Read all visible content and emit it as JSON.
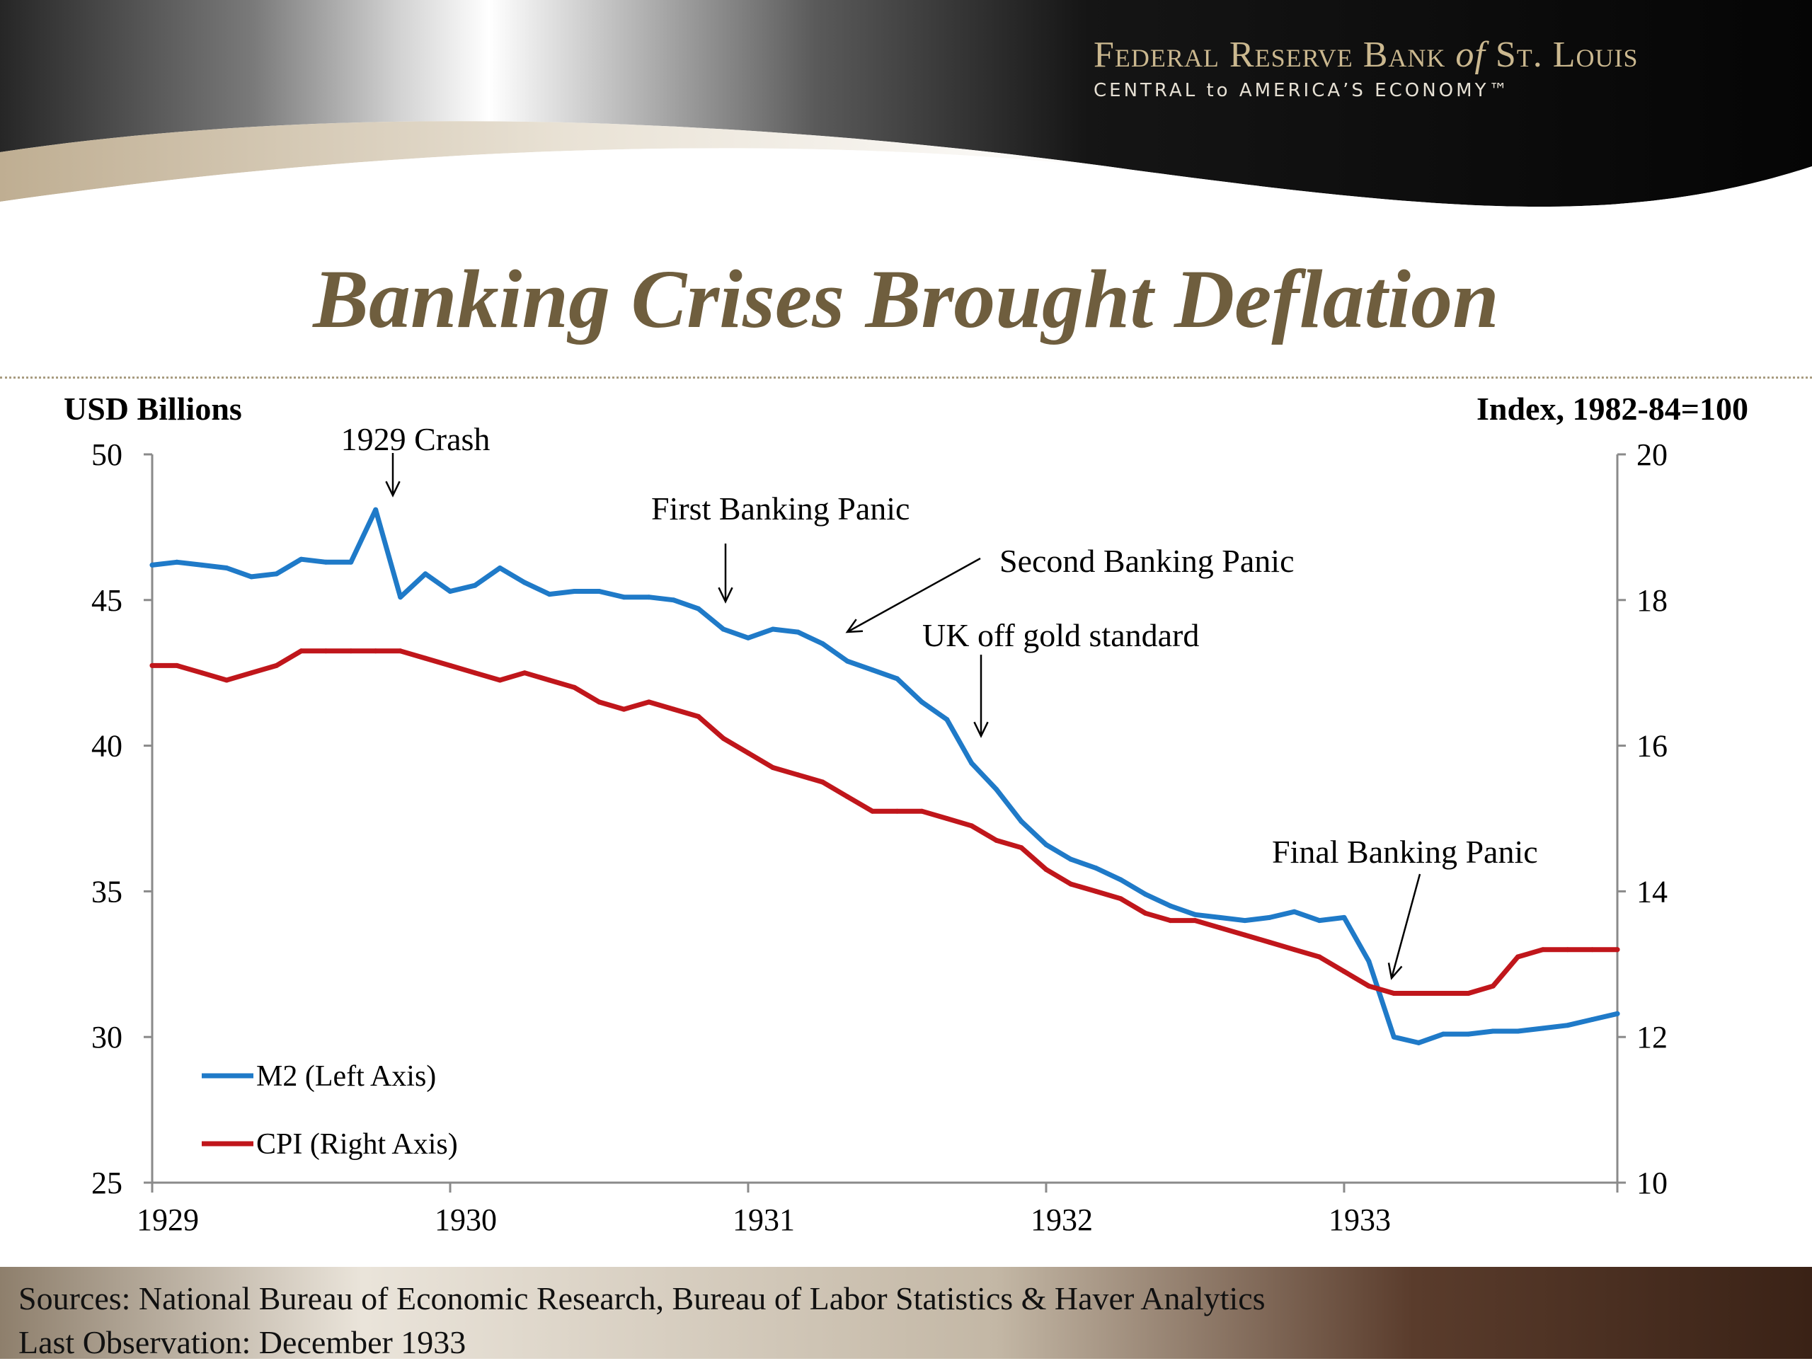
{
  "brand": {
    "name_federal": "Federal",
    "name_reserve": "Reserve",
    "name_bank": "Bank",
    "name_of": "of",
    "name_st_louis": "St. Louis",
    "tagline": "CENTRAL to AMERICA’S ECONOMY™"
  },
  "title": "Banking Crises Brought Deflation",
  "footer": {
    "sources": "Sources: National Bureau of Economic Research, Bureau of Labor Statistics & Haver Analytics",
    "last_observation": "Last Observation: December 1933"
  },
  "colors": {
    "m2": "#1f7ac8",
    "cpi": "#c0161b",
    "title": "#6f5e3e"
  },
  "chart_data": {
    "type": "line",
    "ylabel_left": "USD Billions",
    "ylabel_right": "Index, 1982-84=100",
    "xlim": [
      1929.0,
      1933.917
    ],
    "ylim_left": [
      25,
      50
    ],
    "ylim_right": [
      10,
      20
    ],
    "xticks": [
      1929,
      1930,
      1931,
      1932,
      1933
    ],
    "xtick_labels": [
      "1929",
      "1930",
      "1931",
      "1932",
      "1933"
    ],
    "yticks_left": [
      25,
      30,
      35,
      40,
      45,
      50
    ],
    "yticks_right": [
      10,
      12,
      14,
      16,
      18,
      20
    ],
    "grid": false,
    "legend": "bottom-left",
    "x": [
      1929.0,
      1929.083,
      1929.167,
      1929.25,
      1929.333,
      1929.417,
      1929.5,
      1929.583,
      1929.667,
      1929.75,
      1929.833,
      1929.917,
      1930.0,
      1930.083,
      1930.167,
      1930.25,
      1930.333,
      1930.417,
      1930.5,
      1930.583,
      1930.667,
      1930.75,
      1930.833,
      1930.917,
      1931.0,
      1931.083,
      1931.167,
      1931.25,
      1931.333,
      1931.417,
      1931.5,
      1931.583,
      1931.667,
      1931.75,
      1931.833,
      1931.917,
      1932.0,
      1932.083,
      1932.167,
      1932.25,
      1932.333,
      1932.417,
      1932.5,
      1932.583,
      1932.667,
      1932.75,
      1932.833,
      1932.917,
      1933.0,
      1933.083,
      1933.167,
      1933.25,
      1933.333,
      1933.417,
      1933.5,
      1933.583,
      1933.667,
      1933.75,
      1933.833,
      1933.917
    ],
    "series": [
      {
        "name": "M2 (Left Axis)",
        "axis": "left",
        "color": "#1f7ac8",
        "values": [
          46.2,
          46.3,
          46.2,
          46.1,
          45.8,
          45.9,
          46.4,
          46.3,
          46.3,
          48.1,
          45.1,
          45.9,
          45.3,
          45.5,
          46.1,
          45.6,
          45.2,
          45.3,
          45.3,
          45.1,
          45.1,
          45.0,
          44.7,
          44.0,
          43.7,
          44.0,
          43.9,
          43.5,
          42.9,
          42.6,
          42.3,
          41.5,
          40.9,
          39.4,
          38.5,
          37.4,
          36.6,
          36.1,
          35.8,
          35.4,
          34.9,
          34.5,
          34.2,
          34.1,
          34.0,
          34.1,
          34.3,
          34.0,
          34.1,
          32.6,
          30.0,
          29.8,
          30.1,
          30.1,
          30.2,
          30.2,
          30.3,
          30.4,
          30.6,
          30.8
        ]
      },
      {
        "name": "CPI (Right Axis)",
        "axis": "right",
        "color": "#c0161b",
        "values": [
          17.1,
          17.1,
          17.0,
          16.9,
          17.0,
          17.1,
          17.3,
          17.3,
          17.3,
          17.3,
          17.3,
          17.2,
          17.1,
          17.0,
          16.9,
          17.0,
          16.9,
          16.8,
          16.6,
          16.5,
          16.6,
          16.5,
          16.4,
          16.1,
          15.9,
          15.7,
          15.6,
          15.5,
          15.3,
          15.1,
          15.1,
          15.1,
          15.0,
          14.9,
          14.7,
          14.6,
          14.3,
          14.1,
          14.0,
          13.9,
          13.7,
          13.6,
          13.6,
          13.5,
          13.4,
          13.3,
          13.2,
          13.1,
          12.9,
          12.7,
          12.6,
          12.6,
          12.6,
          12.6,
          12.7,
          13.1,
          13.2,
          13.2,
          13.2,
          13.2
        ]
      }
    ],
    "annotations": [
      {
        "text": "1929 Crash",
        "x": 1929.8,
        "y": 48.1
      },
      {
        "text": "First Banking Panic",
        "x": 1930.95,
        "y": 44.0
      },
      {
        "text": "Second Banking Panic",
        "x": 1931.35,
        "y": 43.0
      },
      {
        "text": "UK off gold standard",
        "x": 1931.82,
        "y": 40.0
      },
      {
        "text": "Final Banking Panic",
        "x": 1933.2,
        "y": 31.9
      }
    ]
  }
}
